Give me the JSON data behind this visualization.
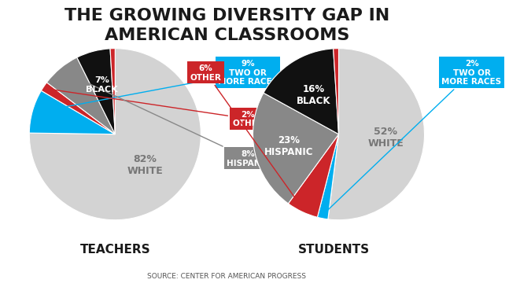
{
  "title": "THE GROWING DIVERSITY GAP IN\nAMERICAN CLASSROOMS",
  "source": "SOURCE: CENTER FOR AMERICAN PROGRESS",
  "teachers": {
    "label": "TEACHERS",
    "slices": [
      82,
      9,
      2,
      8,
      7,
      1
    ],
    "labels": [
      "82%\nWHITE",
      "9%\nTWO OR\nMORE RACES",
      "2%\nOTHER",
      "8%\nHISPANIC",
      "7%\nBLACK",
      ""
    ],
    "colors": [
      "#d3d3d3",
      "#00aeef",
      "#cc2529",
      "#888888",
      "#1a1a1a",
      "#cc2529"
    ],
    "startangle": 90,
    "label_colors": [
      "#888888",
      "#ffffff",
      "#ffffff",
      "#ffffff",
      "#ffffff",
      "#ffffff"
    ],
    "note_labels": [
      "82%\nWHITE",
      "9%\nTWO OR\nMORE RACES",
      "2%\nOTHER",
      "8%\nHISPANIC",
      "7%\nBLACK"
    ],
    "note_pct": [
      82,
      9,
      2,
      8,
      7
    ]
  },
  "students": {
    "label": "STUDENTS",
    "slices": [
      52,
      2,
      6,
      23,
      16,
      1
    ],
    "labels": [
      "52%\nWHITE",
      "2%\nTWO OR\nMORE RACES",
      "6%\nOTHER",
      "23%\nHISPANIC",
      "16%\nBLACK",
      ""
    ],
    "colors": [
      "#d3d3d3",
      "#00aeef",
      "#cc2529",
      "#888888",
      "#1a1a1a",
      "#cc2529"
    ],
    "startangle": 90,
    "label_colors": [
      "#888888",
      "#ffffff",
      "#ffffff",
      "#ffffff",
      "#ffffff",
      "#ffffff"
    ]
  },
  "bg_color": "#ffffff",
  "title_fontsize": 16,
  "label_fontsize": 9
}
